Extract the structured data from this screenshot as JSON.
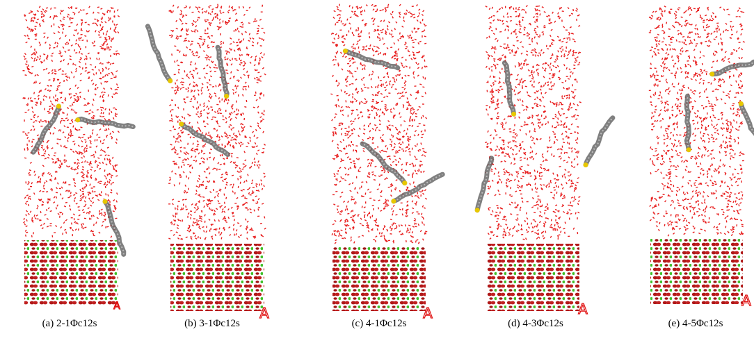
{
  "panels": [
    {
      "caption": "(a) 2-1Φc12s",
      "marker": "A"
    },
    {
      "caption": "(b) 3-1Φc12s",
      "marker": "A"
    },
    {
      "caption": "(c) 4-1Φc12s",
      "marker": "A"
    },
    {
      "caption": "(d) 4-3Φc12s",
      "marker": "A"
    },
    {
      "caption": "(e) 4-5Φc12s",
      "marker": "A"
    }
  ]
}
